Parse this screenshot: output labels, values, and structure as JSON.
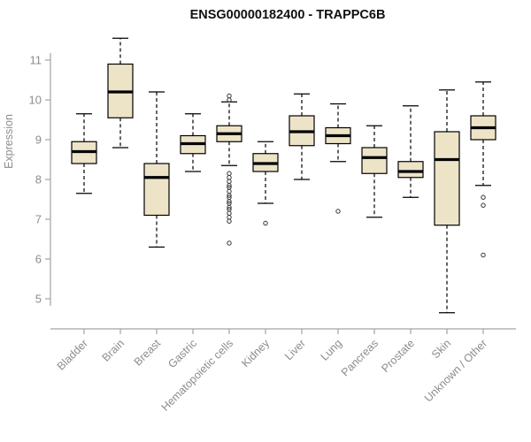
{
  "title": "ENSG00000182400 - TRAPPC6B",
  "chart_data": {
    "type": "boxplot",
    "title": "ENSG00000182400 - TRAPPC6B",
    "ylabel": "Expression",
    "ylim": [
      4.5,
      11.7
    ],
    "yticks": [
      5,
      6,
      7,
      8,
      9,
      10,
      11
    ],
    "grid": false,
    "box_fill": "#EDE4C8",
    "box_stroke": "#000000",
    "median_color": "#000000",
    "axis_color": "#A3A3A3",
    "label_color": "#8C8C8C",
    "title_color": "#111111",
    "categories": [
      "Bladder",
      "Brain",
      "Breast",
      "Gastric",
      "Hematopoietic cells",
      "Kidney",
      "Liver",
      "Lung",
      "Pancreas",
      "Prostate",
      "Skin",
      "Unknown / Other"
    ],
    "series": [
      {
        "category": "Bladder",
        "low": 7.65,
        "q1": 8.4,
        "median": 8.7,
        "q3": 8.95,
        "high": 9.65,
        "outliers": []
      },
      {
        "category": "Brain",
        "low": 8.8,
        "q1": 9.55,
        "median": 10.2,
        "q3": 10.9,
        "high": 11.55,
        "outliers": []
      },
      {
        "category": "Breast",
        "low": 6.3,
        "q1": 7.1,
        "median": 8.05,
        "q3": 8.4,
        "high": 10.2,
        "outliers": []
      },
      {
        "category": "Gastric",
        "low": 8.2,
        "q1": 8.65,
        "median": 8.9,
        "q3": 9.1,
        "high": 9.65,
        "outliers": []
      },
      {
        "category": "Hematopoietic cells",
        "low": 8.35,
        "q1": 8.95,
        "median": 9.15,
        "q3": 9.35,
        "high": 9.95,
        "outliers": [
          10.1,
          10.0,
          8.15,
          8.05,
          7.95,
          7.85,
          7.8,
          7.7,
          7.6,
          7.55,
          7.45,
          7.4,
          7.3,
          7.25,
          7.15,
          7.05,
          6.95,
          6.4
        ]
      },
      {
        "category": "Kidney",
        "low": 7.4,
        "q1": 8.2,
        "median": 8.4,
        "q3": 8.65,
        "high": 8.95,
        "outliers": [
          6.9
        ]
      },
      {
        "category": "Liver",
        "low": 8.0,
        "q1": 8.85,
        "median": 9.2,
        "q3": 9.6,
        "high": 10.15,
        "outliers": []
      },
      {
        "category": "Lung",
        "low": 8.45,
        "q1": 8.9,
        "median": 9.1,
        "q3": 9.3,
        "high": 9.9,
        "outliers": [
          7.2
        ]
      },
      {
        "category": "Pancreas",
        "low": 7.05,
        "q1": 8.15,
        "median": 8.55,
        "q3": 8.8,
        "high": 9.35,
        "outliers": []
      },
      {
        "category": "Prostate",
        "low": 7.55,
        "q1": 8.05,
        "median": 8.2,
        "q3": 8.45,
        "high": 9.85,
        "outliers": []
      },
      {
        "category": "Skin",
        "low": 4.65,
        "q1": 6.85,
        "median": 8.5,
        "q3": 9.2,
        "high": 10.25,
        "outliers": []
      },
      {
        "category": "Unknown / Other",
        "low": 7.85,
        "q1": 9.0,
        "median": 9.3,
        "q3": 9.6,
        "high": 10.45,
        "outliers": [
          7.55,
          7.35,
          6.1
        ]
      }
    ]
  }
}
